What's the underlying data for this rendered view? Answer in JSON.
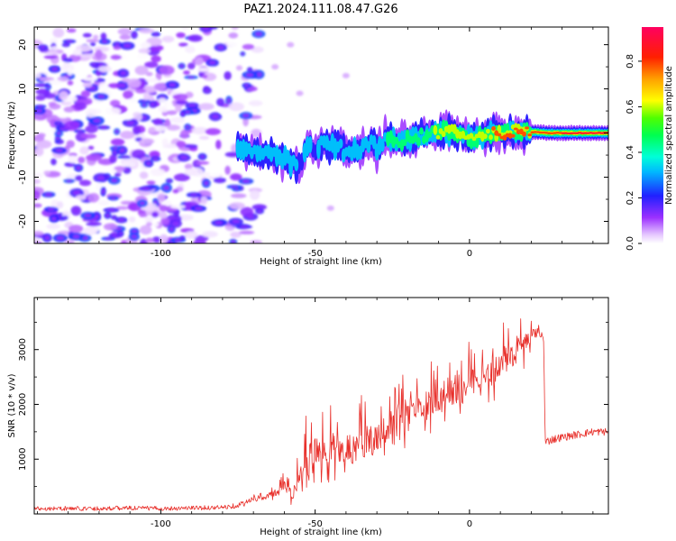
{
  "chart_data": [
    {
      "type": "heatmap",
      "title": "PAZ1.2024.111.08.47.G26",
      "xlabel": "Height of straight line (km)",
      "ylabel": "Frequency (Hz)",
      "xlim": [
        -141,
        45
      ],
      "ylim": [
        -25,
        24
      ],
      "xticks": [
        -100,
        -50,
        0
      ],
      "xtick_labels": [
        "-100",
        "-50",
        "0"
      ],
      "yticks": [
        20,
        10,
        0,
        -10,
        -20
      ],
      "ytick_labels": [
        "20",
        "10",
        "0",
        "-10",
        "-20"
      ],
      "colorbar": {
        "label": "Normalized spectral amplitude",
        "range": [
          0,
          0.95
        ],
        "ticks": [
          0.0,
          0.2,
          0.4,
          0.6,
          0.8
        ],
        "tick_labels": [
          "0.0",
          "0.2",
          "0.4",
          "0.6",
          "0.8"
        ],
        "colormap": "gist_rainbow_r"
      },
      "signal_ridge": {
        "x": [
          -75,
          -70,
          -65,
          -60,
          -57,
          -55,
          -52,
          -50,
          -47,
          -45,
          -42,
          -40,
          -37,
          -35,
          -32,
          -30,
          -27,
          -25,
          -22,
          -20,
          -17,
          -15,
          -12,
          -10,
          -7,
          -5,
          -2,
          0,
          3,
          6,
          9,
          12,
          15,
          18,
          21,
          25,
          30,
          35,
          40,
          45
        ],
        "freq": [
          -4,
          -4,
          -5,
          -6,
          -7,
          -8,
          -2,
          -4,
          -2,
          -3,
          -3,
          -5,
          -3,
          -4,
          -2,
          -4,
          -1,
          -2,
          -2,
          -1,
          -1,
          -0.5,
          0,
          0,
          0.5,
          0,
          -0.5,
          -1,
          -1,
          0,
          0,
          0,
          0.5,
          0,
          0.3,
          0,
          0,
          0,
          0,
          0
        ],
        "amplitude": [
          0.4,
          0.45,
          0.4,
          0.42,
          0.38,
          0.3,
          0.35,
          0.3,
          0.4,
          0.35,
          0.32,
          0.38,
          0.36,
          0.33,
          0.38,
          0.4,
          0.45,
          0.48,
          0.5,
          0.5,
          0.55,
          0.55,
          0.6,
          0.62,
          0.65,
          0.7,
          0.7,
          0.72,
          0.75,
          0.75,
          0.8,
          0.82,
          0.82,
          0.85,
          0.85,
          0.9,
          0.92,
          0.95,
          0.95,
          0.95
        ]
      },
      "noise_region_x": [
        -141,
        -72
      ],
      "noise_amplitude_max": 0.25
    },
    {
      "type": "line",
      "xlabel": "Height of straight line (km)",
      "ylabel": "SNR (10 * v/v)",
      "xlim": [
        -141,
        45
      ],
      "ylim": [
        0,
        3950
      ],
      "xticks": [
        -100,
        -50,
        0
      ],
      "xtick_labels": [
        "-100",
        "-50",
        "0"
      ],
      "yticks": [
        1000,
        2000,
        3000
      ],
      "ytick_labels": [
        "1000",
        "2000",
        "3000"
      ],
      "color": "#e8302b",
      "series": [
        {
          "x": [
            -141,
            -130,
            -120,
            -110,
            -100,
            -90,
            -80,
            -75,
            -70,
            -66,
            -62,
            -60,
            -58,
            -56,
            -54,
            -52,
            -50,
            -48,
            -46,
            -44,
            -42,
            -40,
            -38,
            -36,
            -34,
            -32,
            -30,
            -28,
            -26,
            -24,
            -22,
            -20,
            -18,
            -16,
            -14,
            -12,
            -10,
            -8,
            -6,
            -4,
            -2,
            0,
            2,
            4,
            6,
            8,
            10,
            12,
            14,
            16,
            18,
            20,
            22,
            24,
            24.5,
            26,
            30,
            35,
            40,
            45
          ],
          "y": [
            100,
            100,
            100,
            110,
            100,
            110,
            120,
            160,
            250,
            300,
            420,
            500,
            350,
            420,
            700,
            900,
            1150,
            1100,
            1050,
            1200,
            1100,
            1150,
            1150,
            1250,
            1300,
            1350,
            1400,
            1550,
            1600,
            1700,
            1750,
            1850,
            1900,
            2000,
            2050,
            2050,
            2150,
            2200,
            2200,
            2150,
            2300,
            2400,
            2500,
            2500,
            2550,
            2600,
            2700,
            2800,
            2900,
            3050,
            3100,
            3250,
            3300,
            3250,
            1300,
            1350,
            1400,
            1450,
            1500,
            1500
          ],
          "fluctuation": [
            40,
            40,
            40,
            40,
            40,
            40,
            40,
            50,
            70,
            90,
            150,
            250,
            250,
            450,
            700,
            800,
            700,
            700,
            650,
            650,
            650,
            650,
            650,
            650,
            650,
            650,
            650,
            650,
            650,
            650,
            650,
            650,
            650,
            650,
            600,
            600,
            600,
            600,
            600,
            600,
            600,
            550,
            550,
            550,
            550,
            550,
            550,
            550,
            550,
            500,
            450,
            300,
            150,
            120,
            80,
            80,
            70,
            70,
            70,
            70
          ]
        }
      ]
    }
  ]
}
